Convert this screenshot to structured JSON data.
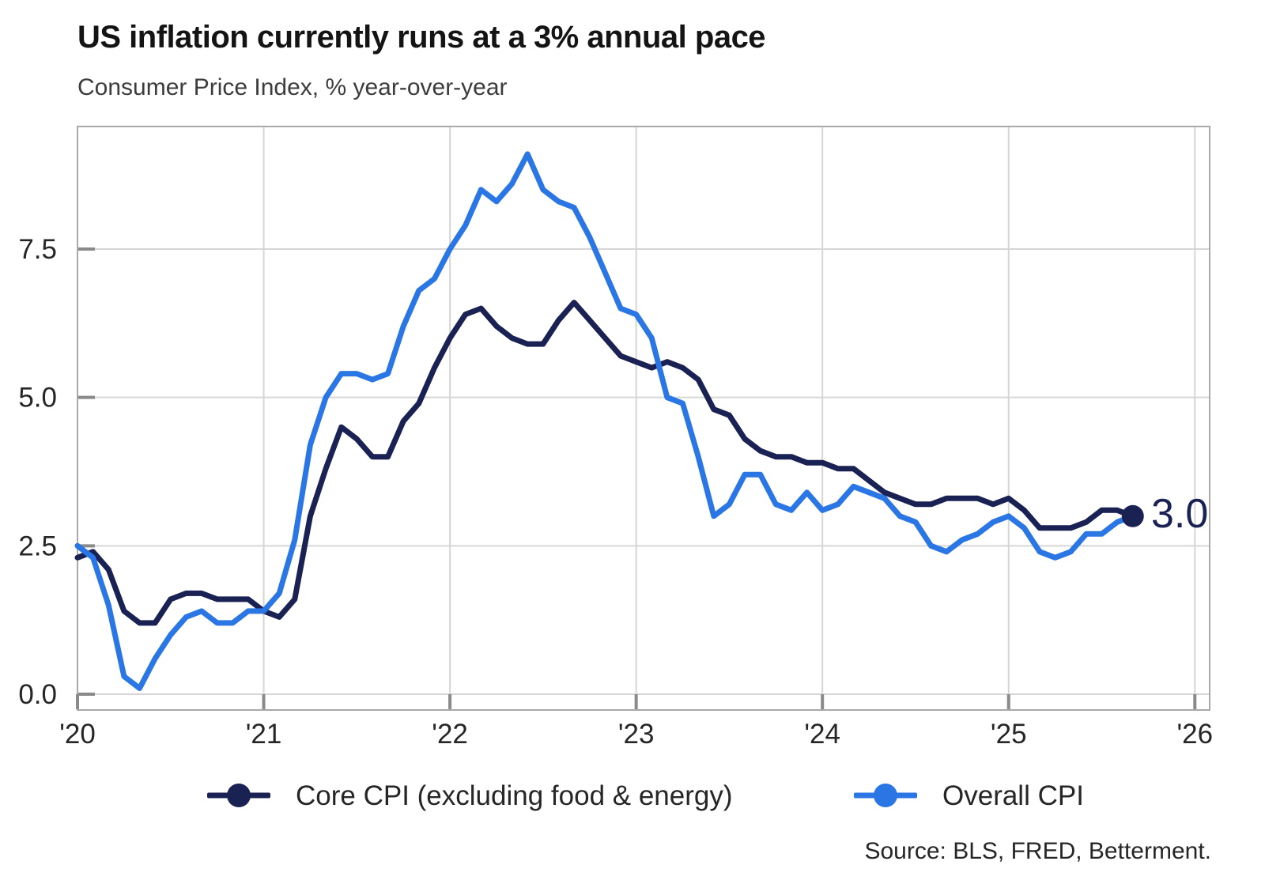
{
  "header": {
    "title": "US inflation currently runs at a 3% annual pace",
    "subtitle": "Consumer Price Index, % year-over-year"
  },
  "chart_data": {
    "type": "line",
    "title": "US inflation currently runs at a 3% annual pace",
    "subtitle": "Consumer Price Index, % year-over-year",
    "ylabel": "",
    "xlabel": "",
    "x_unit": "month",
    "x_start": "2020-01",
    "x_end": "2025-09",
    "grid": true,
    "legend_position": "bottom",
    "ylim": [
      -0.27,
      9.56
    ],
    "xlim_months": [
      0,
      73
    ],
    "months": [
      "2020-01",
      "2020-02",
      "2020-03",
      "2020-04",
      "2020-05",
      "2020-06",
      "2020-07",
      "2020-08",
      "2020-09",
      "2020-10",
      "2020-11",
      "2020-12",
      "2021-01",
      "2021-02",
      "2021-03",
      "2021-04",
      "2021-05",
      "2021-06",
      "2021-07",
      "2021-08",
      "2021-09",
      "2021-10",
      "2021-11",
      "2021-12",
      "2022-01",
      "2022-02",
      "2022-03",
      "2022-04",
      "2022-05",
      "2022-06",
      "2022-07",
      "2022-08",
      "2022-09",
      "2022-10",
      "2022-11",
      "2022-12",
      "2023-01",
      "2023-02",
      "2023-03",
      "2023-04",
      "2023-05",
      "2023-06",
      "2023-07",
      "2023-08",
      "2023-09",
      "2023-10",
      "2023-11",
      "2023-12",
      "2024-01",
      "2024-02",
      "2024-03",
      "2024-04",
      "2024-05",
      "2024-06",
      "2024-07",
      "2024-08",
      "2024-09",
      "2024-10",
      "2024-11",
      "2024-12",
      "2025-01",
      "2025-02",
      "2025-03",
      "2025-04",
      "2025-05",
      "2025-06",
      "2025-07",
      "2025-08",
      "2025-09"
    ],
    "series": [
      {
        "name": "Core CPI (excluding food & energy)",
        "color": "#1a2153",
        "values": [
          2.3,
          2.4,
          2.1,
          1.4,
          1.2,
          1.2,
          1.6,
          1.7,
          1.7,
          1.6,
          1.6,
          1.6,
          1.4,
          1.3,
          1.6,
          3.0,
          3.8,
          4.5,
          4.3,
          4.0,
          4.0,
          4.6,
          4.9,
          5.5,
          6.0,
          6.4,
          6.5,
          6.2,
          6.0,
          5.9,
          5.9,
          6.3,
          6.6,
          6.3,
          6.0,
          5.7,
          5.6,
          5.5,
          5.6,
          5.5,
          5.3,
          4.8,
          4.7,
          4.3,
          4.1,
          4.0,
          4.0,
          3.9,
          3.9,
          3.8,
          3.8,
          3.6,
          3.4,
          3.3,
          3.2,
          3.2,
          3.3,
          3.3,
          3.3,
          3.2,
          3.3,
          3.1,
          2.8,
          2.8,
          2.8,
          2.9,
          3.1,
          3.1,
          3.0
        ]
      },
      {
        "name": "Overall CPI",
        "color": "#2b76e5",
        "values": [
          2.5,
          2.3,
          1.5,
          0.3,
          0.1,
          0.6,
          1.0,
          1.3,
          1.4,
          1.2,
          1.2,
          1.4,
          1.4,
          1.7,
          2.6,
          4.2,
          5.0,
          5.4,
          5.4,
          5.3,
          5.4,
          6.2,
          6.8,
          7.0,
          7.5,
          7.9,
          8.5,
          8.3,
          8.6,
          9.1,
          8.5,
          8.3,
          8.2,
          7.7,
          7.1,
          6.5,
          6.4,
          6.0,
          5.0,
          4.9,
          4.0,
          3.0,
          3.2,
          3.7,
          3.7,
          3.2,
          3.1,
          3.4,
          3.1,
          3.2,
          3.5,
          3.4,
          3.3,
          3.0,
          2.9,
          2.5,
          2.4,
          2.6,
          2.7,
          2.9,
          3.0,
          2.8,
          2.4,
          2.3,
          2.4,
          2.7,
          2.7,
          2.9,
          3.0
        ]
      }
    ],
    "x_ticks": [
      {
        "label": "'20",
        "month_index": 0
      },
      {
        "label": "'21",
        "month_index": 12
      },
      {
        "label": "'22",
        "month_index": 24
      },
      {
        "label": "'23",
        "month_index": 36
      },
      {
        "label": "'24",
        "month_index": 48
      },
      {
        "label": "'25",
        "month_index": 60
      },
      {
        "label": "'26",
        "month_index": 72
      }
    ],
    "y_ticks": [
      {
        "label": "0.0",
        "value": 0
      },
      {
        "label": "2.5",
        "value": 2.5
      },
      {
        "label": "5.0",
        "value": 5
      },
      {
        "label": "7.5",
        "value": 7.5
      }
    ],
    "annotation": {
      "text": "3.0",
      "series": "Core CPI (excluding food & energy)",
      "month": "2025-09",
      "value": 3.0
    },
    "end_dot": {
      "series_index": 0,
      "month": "2025-09",
      "value": 3.0
    },
    "colors": {
      "grid": "#d6d6d6",
      "border": "#a9a9a9",
      "tick": "#8a8a8a",
      "axis_label": "#262626",
      "core_line": "#1a2153",
      "overall_line": "#2b76e5"
    }
  },
  "footer": {
    "source": "Source: BLS, FRED, Betterment."
  }
}
